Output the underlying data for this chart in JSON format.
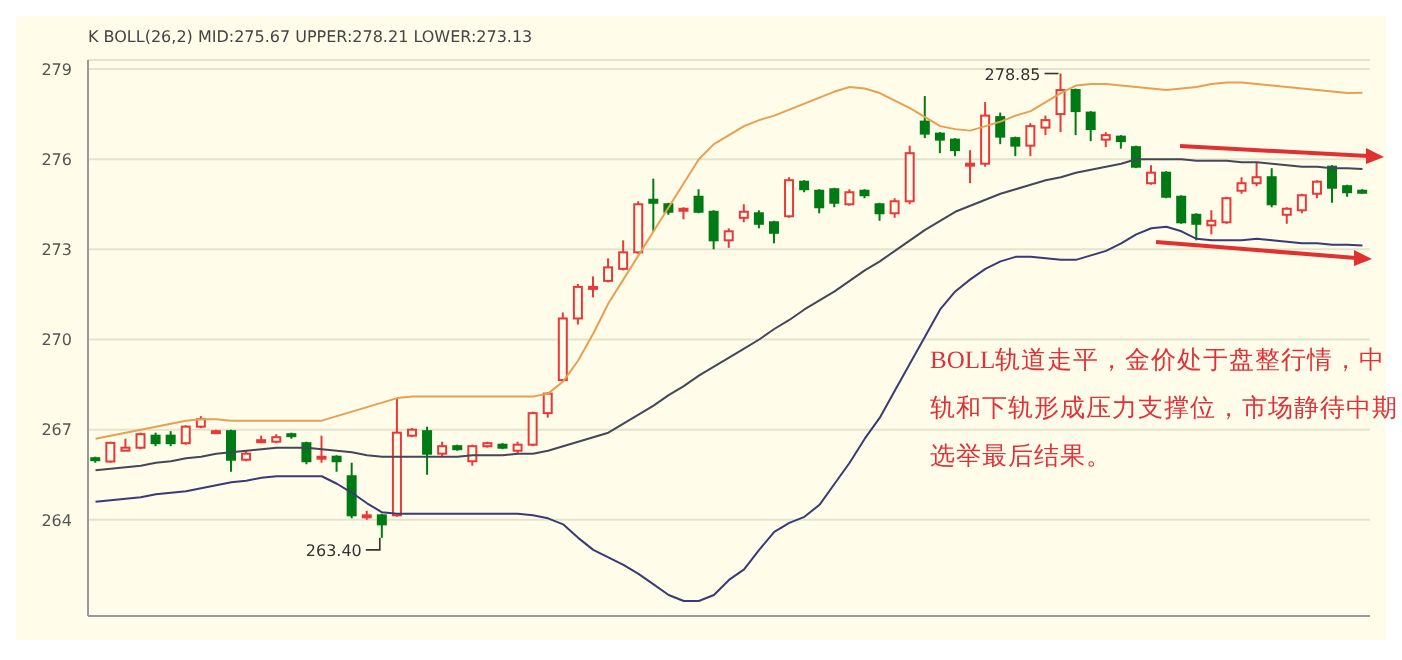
{
  "chart_data": {
    "type": "candlestick",
    "subtitle": "K  BOLL(26,2) MID:275.67 UPPER:278.21 LOWER:273.13",
    "categories": [
      null,
      null,
      null,
      null,
      null,
      null,
      null,
      null,
      null,
      null,
      null,
      null,
      null,
      null,
      null,
      null,
      null,
      null,
      null,
      null,
      null,
      null,
      null,
      null,
      null,
      null,
      null,
      null,
      null,
      null,
      null,
      null,
      null,
      null,
      null,
      null,
      null,
      null,
      null,
      null,
      null,
      null,
      null,
      null,
      null,
      null,
      null,
      null,
      null,
      null,
      null,
      null,
      null,
      null,
      null,
      null,
      null,
      null,
      null,
      null,
      null,
      null,
      null,
      null,
      null,
      null,
      null,
      null,
      null,
      null,
      null,
      null,
      null,
      null,
      null,
      null,
      null,
      null,
      null,
      null,
      null,
      null,
      null,
      null,
      null
    ],
    "ohlc": [
      [
        266.05,
        266.1,
        265.9,
        266.0
      ],
      [
        265.94,
        266.6,
        265.9,
        266.56
      ],
      [
        266.3,
        266.7,
        266.3,
        266.4
      ],
      [
        266.4,
        266.9,
        266.35,
        266.85
      ],
      [
        266.8,
        266.9,
        266.45,
        266.55
      ],
      [
        266.8,
        266.95,
        266.45,
        266.55
      ],
      [
        266.55,
        267.15,
        266.5,
        267.1
      ],
      [
        267.1,
        267.45,
        267.05,
        267.35
      ],
      [
        266.95,
        267.0,
        266.9,
        266.95
      ],
      [
        266.95,
        267.0,
        265.6,
        266.0
      ],
      [
        266.0,
        266.3,
        265.95,
        266.2
      ],
      [
        266.6,
        266.8,
        266.55,
        266.65
      ],
      [
        266.6,
        266.85,
        266.55,
        266.75
      ],
      [
        266.85,
        266.9,
        266.7,
        266.8
      ],
      [
        266.55,
        266.6,
        265.85,
        265.95
      ],
      [
        266.05,
        266.8,
        265.9,
        266.1
      ],
      [
        266.1,
        266.15,
        265.6,
        265.95
      ],
      [
        265.45,
        265.9,
        264.05,
        264.15
      ],
      [
        264.1,
        264.3,
        264.0,
        264.15
      ],
      [
        264.15,
        264.2,
        263.4,
        263.85
      ],
      [
        264.15,
        268.05,
        264.1,
        266.9
      ],
      [
        266.8,
        267.05,
        266.75,
        267.0
      ],
      [
        266.95,
        267.1,
        265.5,
        266.2
      ],
      [
        266.2,
        266.6,
        266.1,
        266.45
      ],
      [
        266.45,
        266.5,
        266.3,
        266.35
      ],
      [
        265.95,
        266.5,
        265.8,
        266.45
      ],
      [
        266.45,
        266.6,
        266.4,
        266.55
      ],
      [
        266.5,
        266.55,
        266.35,
        266.4
      ],
      [
        266.3,
        266.6,
        266.2,
        266.5
      ],
      [
        266.5,
        267.6,
        266.45,
        267.55
      ],
      [
        267.55,
        268.25,
        267.4,
        268.2
      ],
      [
        268.65,
        270.9,
        268.6,
        270.7
      ],
      [
        270.7,
        271.85,
        270.5,
        271.75
      ],
      [
        271.7,
        272.1,
        271.4,
        271.75
      ],
      [
        271.95,
        272.7,
        271.9,
        272.4
      ],
      [
        272.35,
        273.3,
        272.3,
        272.9
      ],
      [
        272.9,
        274.6,
        272.85,
        274.5
      ],
      [
        274.65,
        275.35,
        273.6,
        274.55
      ],
      [
        274.5,
        274.55,
        274.15,
        274.25
      ],
      [
        274.3,
        274.4,
        274.0,
        274.35
      ],
      [
        274.75,
        275.0,
        274.2,
        274.25
      ],
      [
        274.25,
        274.3,
        273.0,
        273.3
      ],
      [
        273.3,
        273.7,
        273.05,
        273.6
      ],
      [
        274.05,
        274.5,
        273.9,
        274.25
      ],
      [
        274.2,
        274.3,
        273.7,
        273.85
      ],
      [
        273.9,
        273.95,
        273.2,
        273.55
      ],
      [
        274.1,
        275.4,
        274.05,
        275.3
      ],
      [
        275.25,
        275.3,
        274.9,
        275.0
      ],
      [
        274.95,
        275.0,
        274.2,
        274.4
      ],
      [
        275.0,
        275.05,
        274.4,
        274.55
      ],
      [
        274.5,
        275.0,
        274.45,
        274.9
      ],
      [
        274.95,
        275.0,
        274.7,
        274.8
      ],
      [
        274.5,
        274.55,
        273.95,
        274.2
      ],
      [
        274.2,
        274.7,
        274.05,
        274.6
      ],
      [
        274.6,
        276.45,
        274.5,
        276.2
      ],
      [
        277.25,
        278.1,
        276.7,
        276.85
      ],
      [
        276.85,
        276.9,
        276.2,
        276.65
      ],
      [
        276.65,
        276.7,
        276.1,
        276.3
      ],
      [
        275.8,
        276.3,
        275.2,
        275.85
      ],
      [
        275.85,
        277.9,
        275.75,
        277.45
      ],
      [
        277.4,
        277.55,
        276.5,
        276.75
      ],
      [
        276.7,
        276.75,
        276.1,
        276.45
      ],
      [
        276.45,
        277.2,
        276.1,
        277.1
      ],
      [
        277.05,
        277.45,
        276.8,
        277.3
      ],
      [
        277.5,
        278.85,
        276.9,
        278.3
      ],
      [
        278.3,
        278.35,
        276.8,
        277.6
      ],
      [
        277.55,
        277.6,
        276.6,
        277.0
      ],
      [
        276.65,
        276.9,
        276.4,
        276.8
      ],
      [
        276.75,
        276.8,
        276.35,
        276.6
      ],
      [
        276.4,
        276.45,
        275.7,
        275.75
      ],
      [
        275.2,
        275.8,
        275.15,
        275.55
      ],
      [
        275.55,
        275.6,
        274.7,
        274.75
      ],
      [
        274.75,
        274.8,
        273.85,
        273.9
      ],
      [
        274.15,
        274.2,
        273.3,
        273.85
      ],
      [
        273.8,
        274.3,
        273.5,
        273.95
      ],
      [
        273.9,
        274.75,
        273.85,
        274.7
      ],
      [
        274.95,
        275.4,
        274.85,
        275.2
      ],
      [
        275.2,
        275.9,
        275.1,
        275.4
      ],
      [
        275.4,
        275.7,
        274.4,
        274.5
      ],
      [
        274.15,
        274.4,
        273.85,
        274.35
      ],
      [
        274.3,
        274.85,
        274.2,
        274.8
      ],
      [
        274.85,
        275.3,
        274.7,
        275.25
      ],
      [
        275.75,
        275.8,
        274.55,
        275.05
      ],
      [
        275.1,
        275.15,
        274.75,
        274.9
      ],
      [
        274.95,
        275.0,
        274.85,
        274.9
      ]
    ],
    "colors": [
      "#007a14",
      "#e8393a",
      "#e8393a",
      "#e8393a",
      "#007a14",
      "#007a14",
      "#e8393a",
      "#e8393a",
      "#e8393a",
      "#007a14",
      "#e8393a",
      "#e8393a",
      "#e8393a",
      "#007a14",
      "#007a14",
      "#e8393a",
      "#007a14",
      "#007a14",
      "#e8393a",
      "#007a14",
      "#e8393a",
      "#e8393a",
      "#007a14",
      "#e8393a",
      "#007a14",
      "#e8393a",
      "#e8393a",
      "#007a14",
      "#e8393a",
      "#e8393a",
      "#e8393a",
      "#e8393a",
      "#e8393a",
      "#e8393a",
      "#e8393a",
      "#e8393a",
      "#e8393a",
      "#007a14",
      "#007a14",
      "#e8393a",
      "#007a14",
      "#007a14",
      "#e8393a",
      "#e8393a",
      "#007a14",
      "#007a14",
      "#e8393a",
      "#007a14",
      "#007a14",
      "#007a14",
      "#e8393a",
      "#007a14",
      "#007a14",
      "#e8393a",
      "#e8393a",
      "#007a14",
      "#007a14",
      "#007a14",
      "#e8393a",
      "#e8393a",
      "#007a14",
      "#007a14",
      "#e8393a",
      "#e8393a",
      "#e8393a",
      "#007a14",
      "#007a14",
      "#e8393a",
      "#007a14",
      "#007a14",
      "#e8393a",
      "#007a14",
      "#007a14",
      "#007a14",
      "#e8393a",
      "#e8393a",
      "#e8393a",
      "#e8393a",
      "#007a14",
      "#e8393a",
      "#e8393a",
      "#e8393a",
      "#007a14",
      "#007a14",
      "#007a14"
    ],
    "series": [
      {
        "type": "line",
        "color": "#e8a050",
        "values": [
          266.7,
          266.8,
          266.9,
          267.0,
          267.1,
          267.2,
          267.3,
          267.35,
          267.35,
          267.3,
          267.3,
          267.3,
          267.3,
          267.3,
          267.3,
          267.3,
          267.45,
          267.6,
          267.75,
          267.9,
          268.05,
          268.1,
          268.1,
          268.1,
          268.1,
          268.1,
          268.1,
          268.1,
          268.1,
          268.1,
          268.2,
          268.6,
          269.3,
          270.2,
          271.2,
          272.0,
          272.8,
          273.6,
          274.4,
          275.2,
          276.0,
          276.5,
          276.8,
          277.1,
          277.3,
          277.45,
          277.65,
          277.85,
          278.05,
          278.25,
          278.4,
          278.35,
          278.2,
          277.95,
          277.7,
          277.4,
          277.1,
          277.0,
          276.95,
          277.1,
          277.25,
          277.45,
          277.6,
          277.9,
          278.2,
          278.45,
          278.5,
          278.5,
          278.45,
          278.4,
          278.35,
          278.3,
          278.35,
          278.4,
          278.5,
          278.55,
          278.55,
          278.5,
          278.45,
          278.4,
          278.35,
          278.3,
          278.25,
          278.2,
          278.21
        ]
      },
      {
        "type": "line",
        "color": "#44475a",
        "values": [
          265.65,
          265.7,
          265.75,
          265.8,
          265.9,
          265.95,
          266.05,
          266.1,
          266.2,
          266.25,
          266.3,
          266.35,
          266.4,
          266.4,
          266.4,
          266.35,
          266.3,
          266.25,
          266.15,
          266.1,
          266.1,
          266.1,
          266.1,
          266.1,
          266.1,
          266.15,
          266.15,
          266.15,
          266.2,
          266.2,
          266.3,
          266.45,
          266.6,
          266.75,
          266.9,
          267.2,
          267.5,
          267.8,
          268.15,
          268.45,
          268.8,
          269.1,
          269.4,
          269.7,
          270.0,
          270.35,
          270.65,
          271.0,
          271.3,
          271.6,
          271.95,
          272.3,
          272.6,
          272.95,
          273.3,
          273.65,
          273.95,
          274.25,
          274.45,
          274.65,
          274.85,
          275.0,
          275.15,
          275.3,
          275.4,
          275.55,
          275.65,
          275.75,
          275.85,
          276.0,
          276.0,
          276.0,
          276.0,
          275.95,
          275.95,
          275.95,
          275.9,
          275.9,
          275.85,
          275.8,
          275.75,
          275.75,
          275.7,
          275.7,
          275.67
        ]
      },
      {
        "type": "line",
        "color": "#3a3a78",
        "values": [
          264.6,
          264.65,
          264.7,
          264.75,
          264.85,
          264.9,
          264.95,
          265.05,
          265.15,
          265.25,
          265.3,
          265.4,
          265.45,
          265.45,
          265.45,
          265.45,
          265.2,
          264.9,
          264.55,
          264.25,
          264.2,
          264.2,
          264.2,
          264.2,
          264.2,
          264.2,
          264.2,
          264.2,
          264.2,
          264.15,
          264.05,
          263.85,
          263.4,
          263.0,
          262.75,
          262.5,
          262.2,
          261.85,
          261.5,
          261.3,
          261.3,
          261.5,
          262.0,
          262.35,
          263.0,
          263.6,
          263.9,
          264.1,
          264.5,
          265.2,
          265.9,
          266.7,
          267.4,
          268.3,
          269.2,
          270.1,
          271.0,
          271.6,
          272.0,
          272.35,
          272.6,
          272.75,
          272.75,
          272.7,
          272.65,
          272.65,
          272.8,
          272.95,
          273.2,
          273.5,
          273.7,
          273.75,
          273.6,
          273.35,
          273.3,
          273.3,
          273.3,
          273.35,
          273.3,
          273.25,
          273.2,
          273.2,
          273.15,
          273.15,
          273.13
        ]
      }
    ],
    "ylim": [
      260.8,
      279.3
    ],
    "yticks": [
      264,
      267,
      270,
      273,
      276,
      279
    ],
    "grid": "y",
    "tick_labels": "y",
    "annotations": [
      "BOLL轨道走平，金价处于盘整行情，中轨和下轨形成压力支撑位，市场静待中期选举最后结果。",
      "263.40",
      "278.85"
    ]
  }
}
